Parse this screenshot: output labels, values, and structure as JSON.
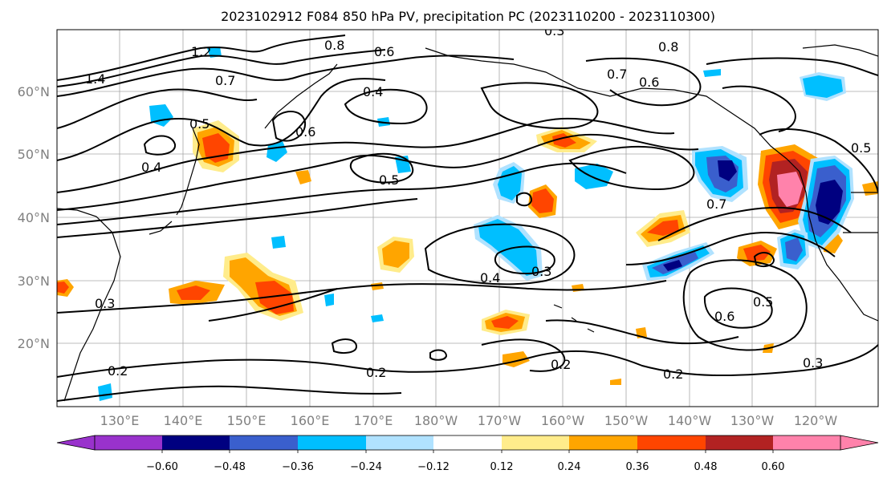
{
  "title": "2023102912 F084 850 hPa PV, precipitation PC (2023110200 - 2023110300)",
  "lat_ticks": [
    "60°N",
    "50°N",
    "40°N",
    "30°N",
    "20°N"
  ],
  "lon_ticks": [
    "130°E",
    "140°E",
    "150°E",
    "160°E",
    "170°E",
    "180°W",
    "170°W",
    "160°W",
    "150°W",
    "140°W",
    "130°W",
    "120°W"
  ],
  "colorbar": {
    "colors": [
      "#9932cc",
      "#000080",
      "#3a5fcd",
      "#00bfff",
      "#b0e2ff",
      "#ffffff",
      "#ffec8b",
      "#ffa500",
      "#ff4500",
      "#b22222",
      "#ff82ab"
    ],
    "tick_labels": [
      "−0.60",
      "−0.48",
      "−0.36",
      "−0.24",
      "−0.12",
      "0.12",
      "0.24",
      "0.36",
      "0.48",
      "0.60"
    ]
  },
  "contour_labels": [
    "1.4",
    "1.2",
    "0.8",
    "0.7",
    "0.5",
    "0.4",
    "0.6",
    "0.3",
    "0.8",
    "0.7",
    "0.6",
    "0.5",
    "0.4",
    "0.5",
    "0.6",
    "0.3",
    "0.4",
    "0.3",
    "0.2",
    "0.2",
    "0.2",
    "0.2",
    "0.3",
    "0.6",
    "0.5",
    "0.7"
  ],
  "map_colors": {
    "land": "#000000",
    "grid": "#808080",
    "contour": "#000000"
  }
}
